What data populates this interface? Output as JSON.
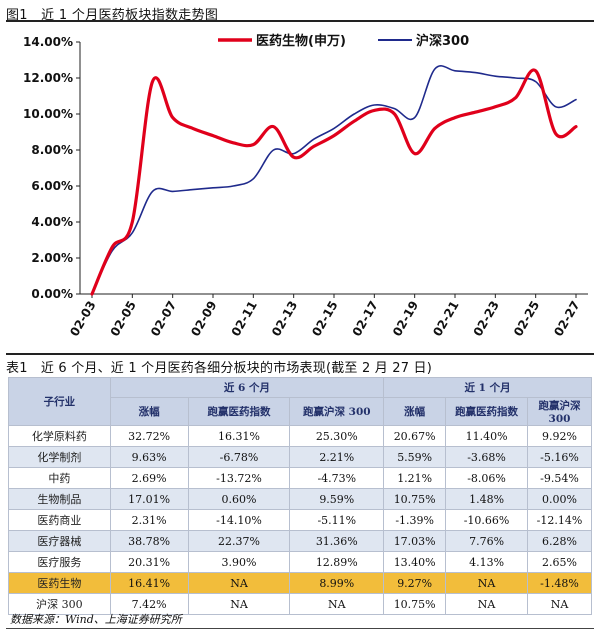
{
  "figure": {
    "title": "图1　近 1 个月医药板块指数走势图"
  },
  "chart_data": {
    "type": "line",
    "title": "",
    "x": [
      "02-03",
      "02-04",
      "02-05",
      "02-06",
      "02-07",
      "02-08",
      "02-09",
      "02-10",
      "02-11",
      "02-12",
      "02-13",
      "02-14",
      "02-15",
      "02-16",
      "02-17",
      "02-18",
      "02-19",
      "02-20",
      "02-21",
      "02-22",
      "02-23",
      "02-24",
      "02-25",
      "02-26",
      "02-27"
    ],
    "xticks": [
      "02-03",
      "02-05",
      "02-07",
      "02-09",
      "02-11",
      "02-13",
      "02-15",
      "02-17",
      "02-19",
      "02-21",
      "02-23",
      "02-25",
      "02-27"
    ],
    "yticks": [
      "0.00%",
      "2.00%",
      "4.00%",
      "6.00%",
      "8.00%",
      "10.00%",
      "12.00%",
      "14.00%"
    ],
    "ylim": [
      0,
      14
    ],
    "legend_position": "top",
    "series": [
      {
        "name": "医药生物(申万)",
        "color": "#e0001b",
        "width": 3.2,
        "values": [
          0.0,
          2.6,
          4.0,
          11.8,
          9.8,
          9.2,
          8.8,
          8.4,
          8.3,
          9.3,
          7.6,
          8.2,
          8.8,
          9.6,
          10.2,
          10.0,
          7.8,
          9.2,
          9.8,
          10.1,
          10.4,
          10.9,
          12.4,
          8.9,
          9.3
        ]
      },
      {
        "name": "沪深300",
        "color": "#1f2a8c",
        "width": 1.6,
        "values": [
          0.0,
          2.4,
          3.4,
          5.7,
          5.7,
          5.8,
          5.9,
          6.0,
          6.4,
          8.0,
          7.8,
          8.6,
          9.2,
          10.0,
          10.5,
          10.3,
          9.8,
          12.5,
          12.4,
          12.3,
          12.1,
          12.0,
          11.8,
          10.4,
          10.8
        ]
      }
    ]
  },
  "table": {
    "title": "表1　近 6 个月、近 1 个月医药各细分板块的市场表现(截至 2 月 27 日)",
    "header_industry": "子行业",
    "group_6m": "近 6 个月",
    "group_1m": "近 1 个月",
    "cols": [
      "涨幅",
      "跑赢医药指数",
      "跑赢沪深 300",
      "涨幅",
      "跑赢医药指数",
      "跑赢沪深 300"
    ],
    "rows": [
      {
        "name": "化学原料药",
        "v": [
          "32.72%",
          "16.31%",
          "25.30%",
          "20.67%",
          "11.40%",
          "9.92%"
        ]
      },
      {
        "name": "化学制剂",
        "v": [
          "9.63%",
          "-6.78%",
          "2.21%",
          "5.59%",
          "-3.68%",
          "-5.16%"
        ]
      },
      {
        "name": "中药",
        "v": [
          "2.69%",
          "-13.72%",
          "-4.73%",
          "1.21%",
          "-8.06%",
          "-9.54%"
        ]
      },
      {
        "name": "生物制品",
        "v": [
          "17.01%",
          "0.60%",
          "9.59%",
          "10.75%",
          "1.48%",
          "0.00%"
        ]
      },
      {
        "name": "医药商业",
        "v": [
          "2.31%",
          "-14.10%",
          "-5.11%",
          "-1.39%",
          "-10.66%",
          "-12.14%"
        ]
      },
      {
        "name": "医疗器械",
        "v": [
          "38.78%",
          "22.37%",
          "31.36%",
          "17.03%",
          "7.76%",
          "6.28%"
        ]
      },
      {
        "name": "医疗服务",
        "v": [
          "20.31%",
          "3.90%",
          "12.89%",
          "13.40%",
          "4.13%",
          "2.65%"
        ]
      },
      {
        "name": "医药生物",
        "v": [
          "16.41%",
          "NA",
          "8.99%",
          "9.27%",
          "NA",
          "-1.48%"
        ],
        "highlight": true
      },
      {
        "name": "沪深 300",
        "v": [
          "7.42%",
          "NA",
          "NA",
          "10.75%",
          "NA",
          "NA"
        ]
      }
    ],
    "highlight_color": "#f2bd3b"
  },
  "source": "数据来源：Wind、上海证券研究所"
}
